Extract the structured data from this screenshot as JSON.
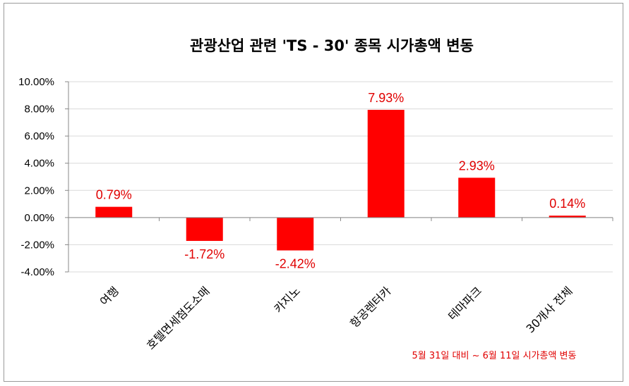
{
  "chart_data": {
    "type": "bar",
    "title": "관광산업 관련 'TS - 30' 종목 시가총액 변동",
    "categories": [
      "여행",
      "호텔면세점도소매",
      "카지노",
      "항공렌터카",
      "테마파크",
      "30개사 전체"
    ],
    "values": [
      0.79,
      -1.72,
      -2.42,
      7.93,
      2.93,
      0.14
    ],
    "data_labels": [
      "0.79%",
      "-1.72%",
      "-2.42%",
      "7.93%",
      "2.93%",
      "0.14%"
    ],
    "y_ticks": [
      "10.00%",
      "8.00%",
      "6.00%",
      "4.00%",
      "2.00%",
      "0.00%",
      "-2.00%",
      "-4.00%"
    ],
    "ylim": [
      -4,
      10
    ],
    "grid": true,
    "bar_color": "#ff0000",
    "label_color": "#e00000",
    "note": "5월 31일 대비 ~ 6월 11일 시가총액 변동"
  }
}
